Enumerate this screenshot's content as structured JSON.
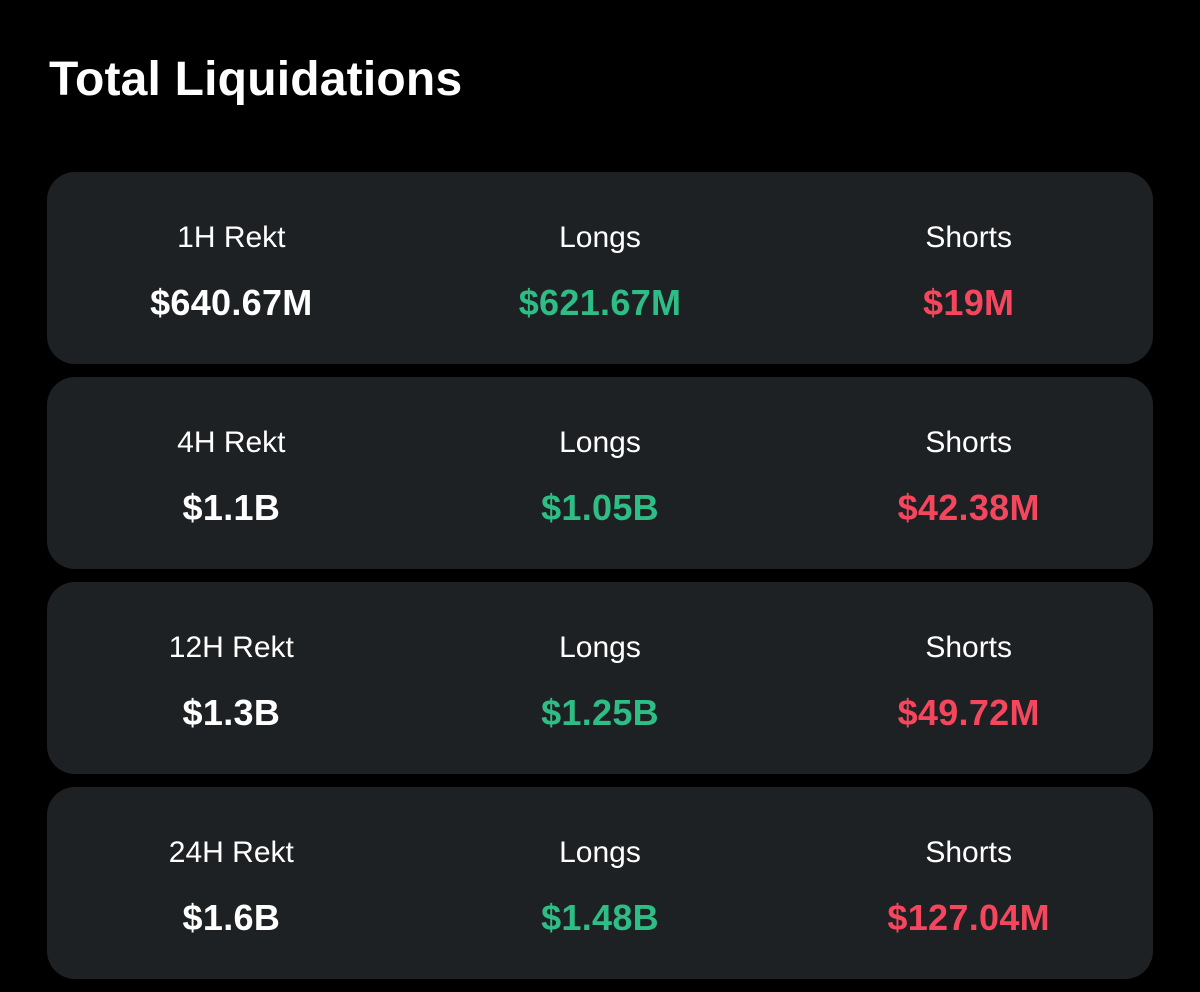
{
  "title": "Total Liquidations",
  "colors": {
    "background": "#000000",
    "card": "#1e2124",
    "text": "#ffffff",
    "longs": "#2ebd85",
    "shorts": "#f6465d"
  },
  "rows": [
    {
      "period_label": "1H Rekt",
      "total": "$640.67M",
      "longs_label": "Longs",
      "longs_value": "$621.67M",
      "shorts_label": "Shorts",
      "shorts_value": "$19M"
    },
    {
      "period_label": "4H Rekt",
      "total": "$1.1B",
      "longs_label": "Longs",
      "longs_value": "$1.05B",
      "shorts_label": "Shorts",
      "shorts_value": "$42.38M"
    },
    {
      "period_label": "12H Rekt",
      "total": "$1.3B",
      "longs_label": "Longs",
      "longs_value": "$1.25B",
      "shorts_label": "Shorts",
      "shorts_value": "$49.72M"
    },
    {
      "period_label": "24H Rekt",
      "total": "$1.6B",
      "longs_label": "Longs",
      "longs_value": "$1.48B",
      "shorts_label": "Shorts",
      "shorts_value": "$127.04M"
    }
  ]
}
